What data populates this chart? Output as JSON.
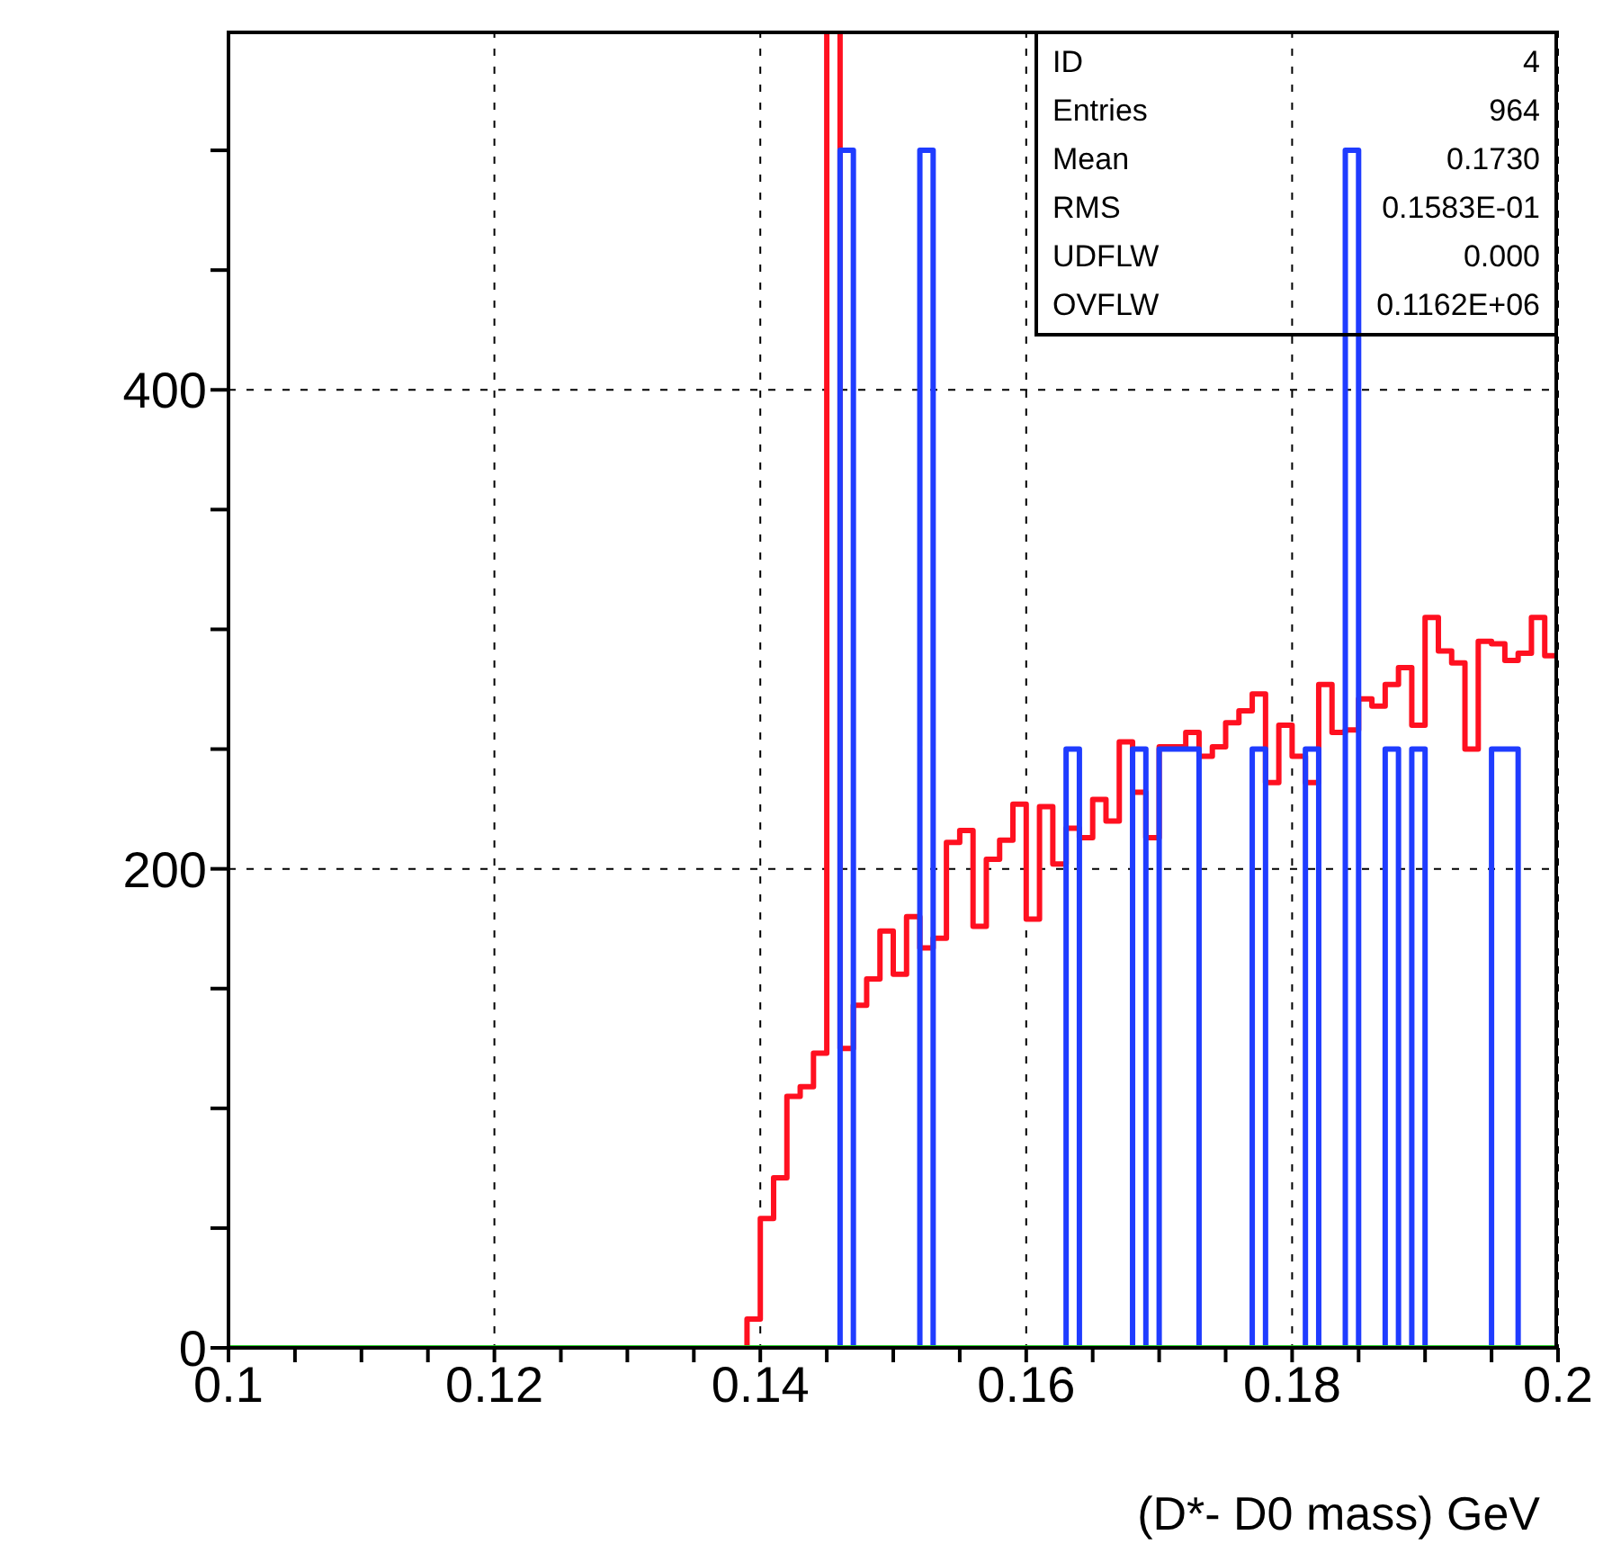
{
  "chart_data": {
    "type": "histogram",
    "xlabel": "(D*- D0 mass) GeV",
    "bins": [
      0.1,
      0.101,
      0.102,
      0.103,
      0.104,
      0.105,
      0.106,
      0.107,
      0.108,
      0.109,
      0.11,
      0.111,
      0.112,
      0.113,
      0.114,
      0.115,
      0.116,
      0.117,
      0.118,
      0.119,
      0.12,
      0.121,
      0.122,
      0.123,
      0.124,
      0.125,
      0.126,
      0.127,
      0.128,
      0.129,
      0.13,
      0.131,
      0.132,
      0.133,
      0.134,
      0.135,
      0.136,
      0.137,
      0.138,
      0.139,
      0.14,
      0.141,
      0.142,
      0.143,
      0.144,
      0.145,
      0.146,
      0.147,
      0.148,
      0.149,
      0.15,
      0.151,
      0.152,
      0.153,
      0.154,
      0.155,
      0.156,
      0.157,
      0.158,
      0.159,
      0.16,
      0.161,
      0.162,
      0.163,
      0.164,
      0.165,
      0.166,
      0.167,
      0.168,
      0.169,
      0.17,
      0.171,
      0.172,
      0.173,
      0.174,
      0.175,
      0.176,
      0.177,
      0.178,
      0.179,
      0.18,
      0.181,
      0.182,
      0.183,
      0.184,
      0.185,
      0.186,
      0.187,
      0.188,
      0.189,
      0.19,
      0.191,
      0.192,
      0.193,
      0.194,
      0.195,
      0.196,
      0.197,
      0.198,
      0.199,
      0.2
    ],
    "series": [
      {
        "color": "#ff1020",
        "values": [
          0,
          0,
          0,
          0,
          0,
          0,
          0,
          0,
          0,
          0,
          0,
          0,
          0,
          0,
          0,
          0,
          0,
          0,
          0,
          0,
          0,
          0,
          0,
          0,
          0,
          0,
          0,
          0,
          0,
          0,
          0,
          0,
          0,
          0,
          0,
          0,
          0,
          0,
          0,
          12,
          54,
          71,
          105,
          109,
          123,
          550,
          125,
          143,
          154,
          174,
          156,
          180,
          167,
          171,
          211,
          216,
          176,
          204,
          212,
          227,
          179,
          226,
          202,
          217,
          213,
          229,
          220,
          253,
          232,
          213,
          251,
          251,
          257,
          247,
          251,
          261,
          266,
          273,
          236,
          260,
          247,
          236,
          277,
          257,
          258,
          271,
          268,
          277,
          284,
          260,
          305,
          291,
          286,
          250,
          295,
          294,
          287,
          290,
          305,
          289
        ]
      },
      {
        "color": "#1f3cff",
        "values": [
          0,
          0,
          0,
          0,
          0,
          0,
          0,
          0,
          0,
          0,
          0,
          0,
          0,
          0,
          0,
          0,
          0,
          0,
          0,
          0,
          0,
          0,
          0,
          0,
          0,
          0,
          0,
          0,
          0,
          0,
          0,
          0,
          0,
          0,
          0,
          0,
          0,
          0,
          0,
          0,
          0,
          0,
          0,
          0,
          0,
          0,
          500,
          0,
          0,
          0,
          0,
          0,
          500,
          0,
          0,
          0,
          0,
          0,
          0,
          0,
          0,
          0,
          0,
          250,
          0,
          0,
          0,
          0,
          250,
          0,
          250,
          250,
          250,
          0,
          0,
          0,
          0,
          250,
          0,
          0,
          0,
          250,
          0,
          0,
          500,
          0,
          0,
          250,
          0,
          250,
          0,
          0,
          0,
          0,
          0,
          250,
          250,
          0,
          0,
          0
        ]
      },
      {
        "color": "#22cc22",
        "values": [
          0,
          0,
          0,
          0,
          0,
          0,
          0,
          0,
          0,
          0,
          0,
          0,
          0,
          0,
          0,
          0,
          0,
          0,
          0,
          0,
          0,
          0,
          0,
          0,
          0,
          0,
          0,
          0,
          0,
          0,
          0,
          0,
          0,
          0,
          0,
          0,
          0,
          0,
          0,
          0,
          0,
          0,
          0,
          0,
          0,
          0,
          0,
          0,
          0,
          0,
          0,
          0,
          0,
          0,
          0,
          0,
          0,
          0,
          0,
          0,
          0,
          0,
          0,
          0,
          0,
          0,
          0,
          0,
          0,
          0,
          0,
          0,
          0,
          0,
          0,
          0,
          0,
          0,
          0,
          0,
          0,
          0,
          0,
          0,
          0,
          0,
          0,
          0,
          0,
          0,
          0,
          0,
          0,
          0,
          0,
          0,
          0,
          0,
          0,
          0
        ]
      }
    ],
    "xlim": [
      0.1,
      0.2
    ],
    "ylim": [
      0,
      550
    ],
    "xticks": [
      0.1,
      {
        "value": 0.105,
        "label": null
      },
      {
        "value": 0.11,
        "label": null
      },
      {
        "value": 0.115,
        "label": null
      },
      0.12,
      {
        "value": 0.125,
        "label": null
      },
      {
        "value": 0.13,
        "label": null
      },
      {
        "value": 0.135,
        "label": null
      },
      0.14,
      {
        "value": 0.145,
        "label": null
      },
      {
        "value": 0.15,
        "label": null
      },
      {
        "value": 0.155,
        "label": null
      },
      0.16,
      {
        "value": 0.165,
        "label": null
      },
      {
        "value": 0.17,
        "label": null
      },
      {
        "value": 0.175,
        "label": null
      },
      0.18,
      {
        "value": 0.185,
        "label": null
      },
      {
        "value": 0.19,
        "label": null
      },
      {
        "value": 0.195,
        "label": null
      },
      0.2
    ],
    "yticks": [
      0,
      {
        "value": 50,
        "label": null
      },
      {
        "value": 100,
        "label": null
      },
      {
        "value": 150,
        "label": null
      },
      200,
      {
        "value": 250,
        "label": null
      },
      {
        "value": 300,
        "label": null
      },
      {
        "value": 350,
        "label": null
      },
      400,
      {
        "value": 450,
        "label": null
      },
      {
        "value": 500,
        "label": null
      }
    ],
    "grid": true,
    "annotations": [
      "ID",
      "4",
      "Entries",
      "964",
      "Mean",
      "0.1730",
      "RMS",
      "0.1583E-01",
      "UDFLW",
      "0.000",
      "OVFLW",
      "0.1162E+06"
    ]
  }
}
